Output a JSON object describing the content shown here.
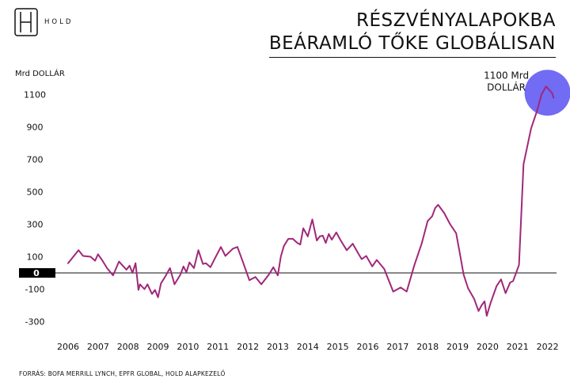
{
  "header": {
    "logo_text": "HOLD",
    "title_line1": "RÉSZVÉNYALAPOKBA",
    "title_line2": "BEÁRAMLÓ TŐKE GLOBÁLISAN"
  },
  "footer": {
    "source": "FORRÁS: BOFA MERRILL LYNCH, EPFR GLOBAL, HOLD ALAPKEZELŐ"
  },
  "colors": {
    "line": "#a0287a",
    "highlight": "#6a63f3",
    "zero_box": "#000000"
  },
  "chart_data": {
    "type": "line",
    "ylabel": "Mrd DOLLÁR",
    "yticks": [
      1100,
      900,
      700,
      500,
      300,
      100,
      0,
      -100,
      -300
    ],
    "ylim": [
      -300,
      1100
    ],
    "xticks": [
      "2006",
      "2007",
      "2008",
      "2009",
      "2010",
      "2011",
      "2012",
      "2013",
      "2014",
      "2015",
      "2016",
      "2017",
      "2018",
      "2019",
      "2020",
      "2021",
      "2022"
    ],
    "xlim": [
      2006,
      2022.5
    ],
    "grid": false,
    "annotation": {
      "text_line1": "1100 Mrd",
      "text_line2": "DOLLÁR",
      "x": 2022.0,
      "y": 1150
    },
    "series": [
      {
        "x": [
          2006.0,
          2006.35,
          2006.5,
          2006.75,
          2006.9,
          2007.0,
          2007.15,
          2007.3,
          2007.5,
          2007.7,
          2007.8,
          2007.95,
          2008.05,
          2008.15,
          2008.25,
          2008.35,
          2008.4,
          2008.55,
          2008.65,
          2008.8,
          2008.9,
          2009.0,
          2009.1,
          2009.25,
          2009.4,
          2009.55,
          2009.75,
          2009.85,
          2009.95,
          2010.05,
          2010.2,
          2010.35,
          2010.5,
          2010.6,
          2010.75,
          2010.9,
          2011.1,
          2011.25,
          2011.5,
          2011.65,
          2011.85,
          2012.05,
          2012.25,
          2012.45,
          2012.7,
          2012.85,
          2013.0,
          2013.1,
          2013.2,
          2013.35,
          2013.5,
          2013.65,
          2013.75,
          2013.85,
          2014.0,
          2014.15,
          2014.3,
          2014.4,
          2014.5,
          2014.6,
          2014.7,
          2014.8,
          2014.95,
          2015.1,
          2015.3,
          2015.5,
          2015.7,
          2015.8,
          2015.95,
          2016.15,
          2016.3,
          2016.55,
          2016.85,
          2017.1,
          2017.3,
          2017.55,
          2017.8,
          2018.0,
          2018.15,
          2018.25,
          2018.35,
          2018.55,
          2018.75,
          2018.95,
          2019.1,
          2019.2,
          2019.35,
          2019.55,
          2019.7,
          2019.8,
          2019.9,
          2019.97,
          2020.1,
          2020.3,
          2020.45,
          2020.6,
          2020.75,
          2020.85,
          2021.05,
          2021.2,
          2021.45,
          2021.65,
          2021.8,
          2021.95,
          2022.05,
          2022.15,
          2022.2
        ],
        "y": [
          60,
          140,
          105,
          100,
          75,
          115,
          75,
          30,
          -15,
          70,
          50,
          20,
          45,
          0,
          60,
          -105,
          -70,
          -100,
          -70,
          -130,
          -105,
          -150,
          -65,
          -20,
          30,
          -70,
          -10,
          40,
          5,
          65,
          30,
          140,
          55,
          60,
          35,
          90,
          160,
          105,
          150,
          160,
          60,
          -45,
          -25,
          -70,
          -10,
          35,
          -15,
          100,
          165,
          210,
          210,
          185,
          175,
          275,
          225,
          330,
          200,
          225,
          230,
          185,
          240,
          205,
          250,
          200,
          140,
          180,
          115,
          85,
          105,
          40,
          80,
          25,
          -115,
          -90,
          -115,
          45,
          180,
          320,
          350,
          400,
          420,
          370,
          300,
          245,
          95,
          -10,
          -95,
          -160,
          -235,
          -200,
          -175,
          -265,
          -185,
          -80,
          -40,
          -125,
          -60,
          -50,
          50,
          670,
          890,
          1000,
          1100,
          1150,
          1130,
          1110,
          1080
        ]
      }
    ]
  }
}
